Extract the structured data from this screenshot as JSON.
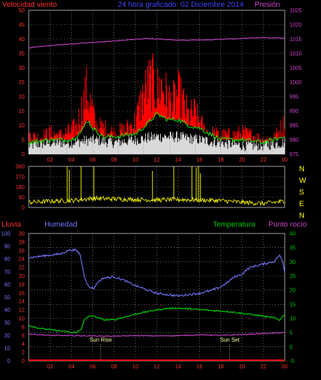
{
  "chart_data": [
    {
      "type": "line",
      "title": "24 hora graficado: 02 Diciembre 2014",
      "labels": {
        "left": "Velocidad viento",
        "right": "Presión"
      },
      "colors": {
        "wind_avg": "#ffffff",
        "wind_gust": "#ff0000",
        "wind_gust_avg": "#00ff00",
        "pressure": "#cc44cc",
        "axis_left": "#ff3333",
        "axis_right": "#cc44cc",
        "title": "#4444ff"
      },
      "x_ticks": [
        "02",
        "04",
        "06",
        "08",
        "10",
        "12",
        "14",
        "16",
        "18",
        "20",
        "22",
        "00"
      ],
      "left_ticks": [
        "0",
        "5",
        "10",
        "15",
        "20",
        "25",
        "30",
        "35",
        "40",
        "45",
        "50"
      ],
      "right_ticks": [
        "975",
        "980",
        "985",
        "990",
        "995",
        "1000",
        "1005",
        "1010",
        "1015",
        "1020",
        "1025"
      ],
      "ylim_left": [
        0,
        50
      ],
      "ylim_right": [
        975,
        1025
      ],
      "x_range_hours": [
        0,
        24
      ],
      "series": [
        {
          "key": "pressure",
          "hours": [
            0,
            2,
            4,
            6,
            8,
            10,
            11,
            12,
            14,
            16,
            18,
            20,
            22,
            24
          ],
          "values": [
            1012,
            1012.7,
            1013.3,
            1013.8,
            1014.3,
            1014.9,
            1015.2,
            1015.0,
            1014.6,
            1014.7,
            1014.9,
            1015.2,
            1015.5,
            1015.3
          ]
        },
        {
          "key": "wind_gust",
          "hours": [
            0,
            1,
            2,
            3,
            4,
            4.5,
            5,
            5.4,
            5.8,
            6.3,
            7,
            8,
            9,
            10,
            10.5,
            11,
            11.5,
            12,
            12.5,
            13,
            13.5,
            14,
            14.5,
            15,
            15.5,
            16,
            16.5,
            17,
            18,
            19,
            20,
            21,
            22,
            23,
            23.5,
            24
          ],
          "values": [
            8,
            7,
            9,
            8,
            10,
            12,
            20,
            27,
            22,
            12,
            11,
            9,
            10,
            14,
            22,
            28,
            32,
            27,
            30,
            24,
            22,
            26,
            22,
            16,
            18,
            14,
            10,
            9,
            8,
            8,
            9,
            8,
            6,
            7,
            10,
            13
          ]
        },
        {
          "key": "wind_gust_avg",
          "hours": [
            0,
            2,
            4,
            5,
            5.5,
            6,
            7,
            8,
            10,
            11,
            12,
            13,
            14,
            15,
            16,
            17,
            18,
            20,
            22,
            24
          ],
          "values": [
            4,
            5,
            5,
            8,
            12,
            9,
            6,
            6,
            7,
            10,
            14,
            12,
            12,
            10,
            9,
            7,
            5,
            5,
            4,
            6
          ]
        },
        {
          "key": "wind_avg",
          "hours": [
            0,
            2,
            4,
            6,
            8,
            10,
            12,
            14,
            16,
            18,
            20,
            22,
            24
          ],
          "values": [
            3,
            4,
            4,
            5,
            4,
            5,
            6,
            6,
            5,
            4,
            3,
            3,
            4
          ]
        }
      ]
    },
    {
      "type": "line",
      "title": "",
      "labels": {
        "right": [
          "N",
          "W",
          "S",
          "E",
          "N"
        ]
      },
      "colors": {
        "direction": "#ffff00",
        "axis": "#ff3333",
        "right_labels": "#ffff00"
      },
      "x_ticks": [
        "02",
        "04",
        "06",
        "08",
        "10",
        "12",
        "14",
        "16",
        "18",
        "20",
        "22",
        "00"
      ],
      "left_ticks": [
        "0",
        "90",
        "180",
        "270",
        "360"
      ],
      "ylim": [
        0,
        360
      ],
      "x_range_hours": [
        0,
        24
      ],
      "series": [
        {
          "key": "direction",
          "hours": [
            0,
            2,
            4,
            6,
            8,
            10,
            12,
            14,
            16,
            18,
            20,
            22,
            24
          ],
          "values": [
            45,
            55,
            60,
            80,
            75,
            70,
            65,
            70,
            65,
            60,
            45,
            35,
            55
          ]
        }
      ],
      "spikes": {
        "hours": [
          3.6,
          3.8,
          4.9,
          6.1,
          11.6,
          13.6,
          15.3,
          15.7,
          15.9,
          16.1
        ],
        "values": [
          360,
          330,
          360,
          360,
          320,
          360,
          360,
          350,
          360,
          300
        ]
      }
    },
    {
      "type": "line",
      "title": "",
      "labels": {
        "rain": "Lluvia",
        "humidity": "Humedad",
        "temperature": "Temperatura",
        "dewpoint": "Punto rocío"
      },
      "annotations": [
        {
          "text": "Sun Rise",
          "hour": 6.75
        },
        {
          "text": "Sun Set",
          "hour": 18.85
        }
      ],
      "colors": {
        "rain": "#ff0000",
        "humidity": "#7777ff",
        "temperature": "#00dd00",
        "dewpoint": "#cc44cc",
        "axis_temp": "#00cc00",
        "axis_rain": "#ff3333",
        "axis_hum": "#7777ff",
        "annotation": "#ffffaa"
      },
      "x_ticks": [
        "02",
        "04",
        "06",
        "08",
        "10",
        "12",
        "14",
        "16",
        "18",
        "20",
        "22",
        "00"
      ],
      "humidity_ticks": [
        "0",
        "10",
        "20",
        "30",
        "40",
        "50",
        "60",
        "70",
        "80",
        "90",
        "100"
      ],
      "rain_ticks": [
        "0",
        "2",
        "4",
        "6",
        "8",
        "10",
        "12",
        "14",
        "16",
        "18",
        "20",
        "22",
        "24",
        "26",
        "28",
        "30"
      ],
      "temp_ticks": [
        "-5",
        "0",
        "5",
        "10",
        "15",
        "20",
        "25",
        "30",
        "35",
        "40"
      ],
      "ylim_temp": [
        -5,
        40
      ],
      "ylim_humidity": [
        0,
        100
      ],
      "x_range_hours": [
        0,
        24
      ],
      "series": [
        {
          "key": "humidity",
          "hours": [
            0,
            1,
            2,
            3,
            3.8,
            4.4,
            4.8,
            5.2,
            5.6,
            6.1,
            6.5,
            7,
            8,
            9,
            10,
            11,
            12,
            13,
            14,
            15,
            16,
            17,
            18,
            18.7,
            19.3,
            20,
            20.5,
            21,
            22,
            23,
            23.5,
            23.8,
            24
          ],
          "values": [
            81,
            82,
            83,
            84,
            87,
            87,
            84,
            67,
            58,
            57,
            62,
            65,
            66,
            63,
            59,
            56,
            53,
            52,
            51,
            52,
            53,
            55,
            58,
            62,
            66,
            68,
            72,
            74,
            76,
            78,
            83,
            78,
            70
          ]
        },
        {
          "key": "temperature",
          "hours": [
            0,
            1,
            2,
            3,
            4,
            4.5,
            4.9,
            5.2,
            5.8,
            6.3,
            7,
            8,
            9,
            10,
            11,
            12,
            13,
            14,
            15,
            16,
            17,
            18,
            19,
            20,
            21,
            22,
            23,
            23.5,
            24
          ],
          "values": [
            7.5,
            6.5,
            6.0,
            5.6,
            5.0,
            5.1,
            6.0,
            9.5,
            11.0,
            10.5,
            9.5,
            9.5,
            10.5,
            11.5,
            12.3,
            13.0,
            13.5,
            13.6,
            13.4,
            13.1,
            12.8,
            12.6,
            12.3,
            11.8,
            11.3,
            10.8,
            10.2,
            9.4,
            11.5
          ]
        },
        {
          "key": "dewpoint",
          "hours": [
            0,
            2,
            4,
            6,
            8,
            10,
            12,
            14,
            16,
            18,
            20,
            22,
            24
          ],
          "values": [
            4.5,
            4.0,
            3.9,
            3.8,
            3.7,
            3.9,
            3.8,
            3.9,
            4.2,
            4.0,
            4.3,
            4.6,
            5.0
          ]
        },
        {
          "key": "rain",
          "hours": [
            0,
            24
          ],
          "values": [
            0,
            0
          ]
        }
      ]
    }
  ]
}
